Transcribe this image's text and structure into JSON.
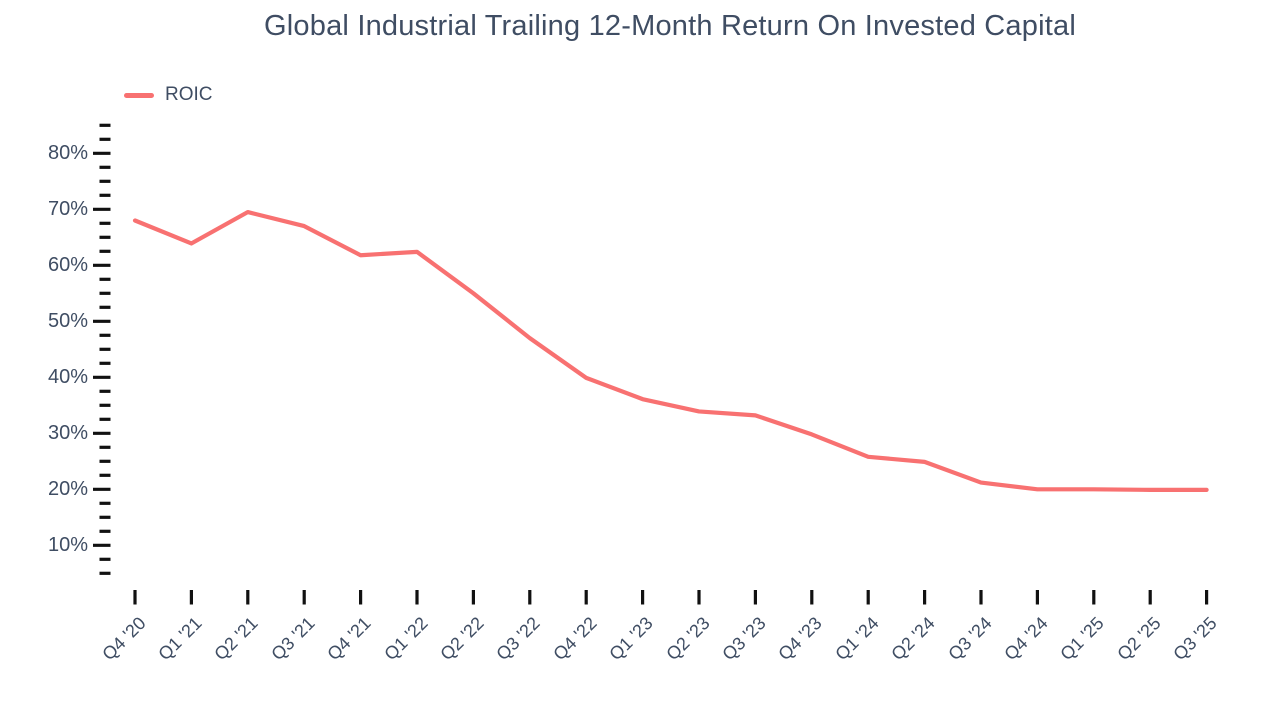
{
  "title": "Global Industrial Trailing 12-Month Return On Invested Capital",
  "legend": {
    "label": "ROIC"
  },
  "colors": {
    "line": "#F87171",
    "text": "#3F4D63",
    "tick": "#111111",
    "background": "#FFFFFF"
  },
  "chart_data": {
    "type": "line",
    "title": "Global Industrial Trailing 12-Month Return On Invested Capital",
    "unit": "%",
    "categories": [
      "Q4 '20",
      "Q1 '21",
      "Q2 '21",
      "Q3 '21",
      "Q4 '21",
      "Q1 '22",
      "Q2 '22",
      "Q3 '22",
      "Q4 '22",
      "Q1 '23",
      "Q2 '23",
      "Q3 '23",
      "Q4 '23",
      "Q1 '24",
      "Q2 '24",
      "Q3 '24",
      "Q4 '24",
      "Q1 '25",
      "Q2 '25",
      "Q3 '25"
    ],
    "series": [
      {
        "name": "ROIC",
        "values": [
          68,
          63.9,
          69.5,
          67,
          61.8,
          62.4,
          55,
          47,
          39.9,
          36.1,
          33.9,
          33.2,
          29.8,
          25.8,
          24.9,
          21.2,
          20,
          20,
          19.9,
          19.9
        ]
      }
    ],
    "ylim": [
      5,
      85
    ],
    "ytick_major_values": [
      80,
      70,
      60,
      50,
      40,
      30,
      20,
      10
    ],
    "ytick_labels": [
      "80%",
      "70%",
      "60%",
      "50%",
      "40%",
      "30%",
      "20%",
      "10%"
    ],
    "ytick_minor_step": 2.5,
    "xlabel": "",
    "ylabel": "",
    "grid": false,
    "legend_position": "top-left"
  }
}
